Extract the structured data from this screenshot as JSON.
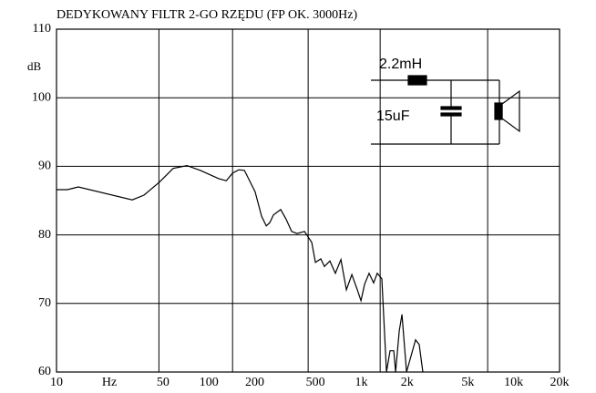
{
  "chart_data": {
    "type": "line",
    "title": "DEDYKOWANY FILTR 2-GO RZĘDU (FP OK. 3000Hz)",
    "y_label": "dB",
    "x_label": "Hz",
    "x": [
      10,
      11.8,
      13.9,
      31.4,
      37.5,
      47.4,
      58.3,
      71.7,
      88.1,
      116,
      130,
      143,
      157,
      171,
      201,
      222,
      238,
      251,
      265,
      296,
      321,
      349,
      379,
      424,
      473,
      500,
      542,
      573,
      622,
      676,
      735,
      798,
      867,
      942,
      995,
      1052,
      1125,
      1205,
      1274,
      1365,
      1463,
      1545,
      1633,
      1679,
      1774,
      1849,
      1982,
      2270,
      2399,
      2536
    ],
    "values": [
      86.6,
      86.6,
      87.0,
      85.1,
      85.8,
      87.7,
      89.7,
      90.1,
      89.4,
      88.2,
      87.9,
      89.0,
      89.5,
      89.4,
      86.3,
      82.7,
      81.3,
      81.8,
      82.9,
      83.7,
      82.3,
      80.5,
      80.2,
      80.5,
      78.9,
      76.0,
      76.5,
      75.4,
      76.2,
      74.4,
      76.4,
      72.0,
      74.2,
      72.0,
      70.4,
      72.8,
      74.4,
      73.0,
      74.4,
      73.6,
      60,
      63.1,
      63.1,
      60,
      66,
      68.4,
      60,
      64.7,
      64,
      60
    ],
    "color": "#000000",
    "xlog": true,
    "xlim": [
      10,
      20000
    ],
    "xticks": [
      10,
      50,
      100,
      200,
      500,
      {
        "value": 1000,
        "label": "1k"
      },
      {
        "value": 2000,
        "label": "2k"
      },
      {
        "value": 5000,
        "label": "5k"
      },
      {
        "value": 10000,
        "label": "10k"
      },
      {
        "value": 20000,
        "label": "20k"
      }
    ],
    "xgrid": [
      47,
      143,
      448,
      1330,
      6750
    ],
    "ylim": [
      60,
      110
    ],
    "yticks": [
      60,
      70,
      80,
      90,
      100,
      110
    ],
    "grid": true,
    "inset": {
      "inductor": "2.2mH",
      "capacitor": "15uF"
    }
  }
}
